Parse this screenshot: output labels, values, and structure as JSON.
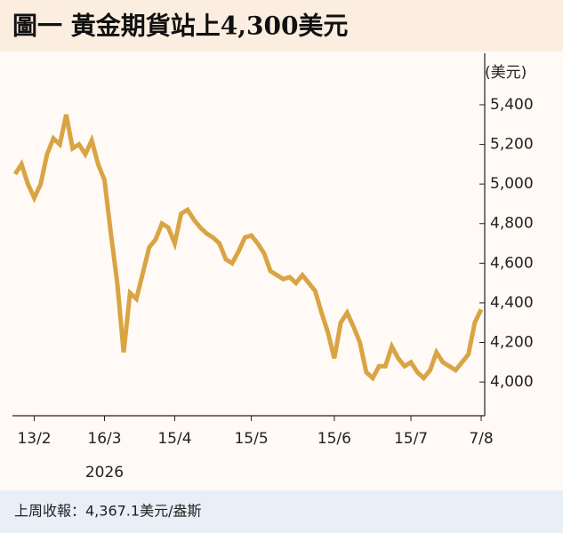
{
  "chart_data": {
    "type": "line",
    "title": "圖一  黃金期貨站上4,300美元",
    "unit_label": "(美元)",
    "year_label": "2026",
    "note": "上周收報：4,367.1美元/盎斯",
    "color": "#d9a443",
    "categories": [
      null,
      null,
      null,
      "13/2",
      null,
      null,
      null,
      null,
      null,
      null,
      null,
      null,
      null,
      null,
      "16/3",
      null,
      null,
      null,
      null,
      null,
      null,
      null,
      null,
      null,
      null,
      "15/4",
      null,
      null,
      null,
      null,
      null,
      null,
      null,
      null,
      null,
      null,
      null,
      "15/5",
      null,
      null,
      null,
      null,
      null,
      null,
      null,
      null,
      null,
      null,
      null,
      null,
      "15/6",
      null,
      null,
      null,
      null,
      null,
      null,
      null,
      null,
      null,
      null,
      null,
      "15/7",
      null,
      null,
      null,
      null,
      null,
      null,
      null,
      null,
      null,
      null,
      "7/8"
    ],
    "values": [
      5050,
      5100,
      5000,
      4930,
      5000,
      5150,
      5230,
      5200,
      5350,
      5180,
      5200,
      5150,
      5220,
      5100,
      5020,
      4750,
      4500,
      4150,
      4450,
      4420,
      4550,
      4680,
      4720,
      4800,
      4780,
      4700,
      4850,
      4870,
      4820,
      4780,
      4750,
      4730,
      4700,
      4620,
      4600,
      4660,
      4730,
      4740,
      4700,
      4650,
      4560,
      4540,
      4520,
      4530,
      4500,
      4540,
      4500,
      4460,
      4350,
      4250,
      4120,
      4300,
      4350,
      4280,
      4200,
      4050,
      4020,
      4080,
      4080,
      4180,
      4120,
      4080,
      4100,
      4050,
      4020,
      4060,
      4150,
      4100,
      4080,
      4060,
      4100,
      4140,
      4300,
      4367
    ],
    "ylim": [
      3830,
      5660
    ],
    "yticks": [
      {
        "value": 4000,
        "label": "4,000"
      },
      {
        "value": 4200,
        "label": "4,200"
      },
      {
        "value": 4400,
        "label": "4,400"
      },
      {
        "value": 4600,
        "label": "4,600"
      },
      {
        "value": 4800,
        "label": "4,800"
      },
      {
        "value": 5000,
        "label": "5,000"
      },
      {
        "value": 5200,
        "label": "5,200"
      },
      {
        "value": 5400,
        "label": "5,400"
      }
    ]
  }
}
